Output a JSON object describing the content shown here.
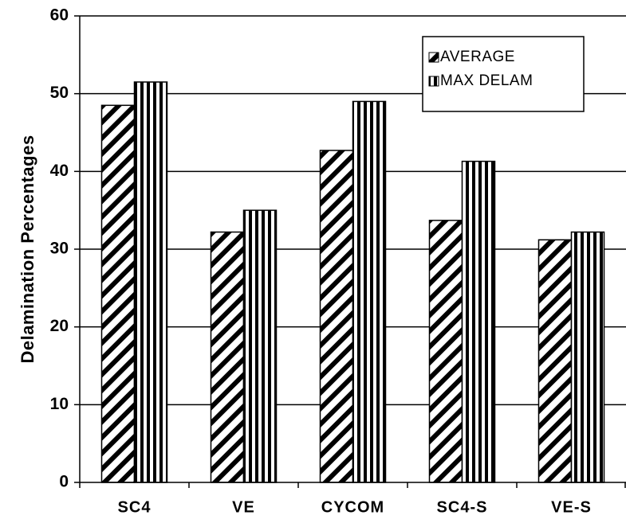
{
  "chart_data": {
    "type": "bar",
    "y_label": "Delamination Percentages",
    "categories": [
      "SC4",
      "VE",
      "CYCOM",
      "SC4-S",
      "VE-S"
    ],
    "series": [
      {
        "name": "AVERAGE",
        "color": "#000000",
        "hatch": "diagonal",
        "values": [
          48.5,
          32.2,
          42.7,
          33.7,
          31.2
        ]
      },
      {
        "name": "MAX DELAM",
        "color": "#000000",
        "hatch": "vertical",
        "values": [
          51.5,
          35,
          49,
          41.3,
          32.2
        ]
      }
    ],
    "ylim": [
      0,
      60
    ],
    "yticks": [
      0,
      10,
      20,
      30,
      40,
      50,
      60
    ],
    "grid": true,
    "legend": "upper right"
  }
}
